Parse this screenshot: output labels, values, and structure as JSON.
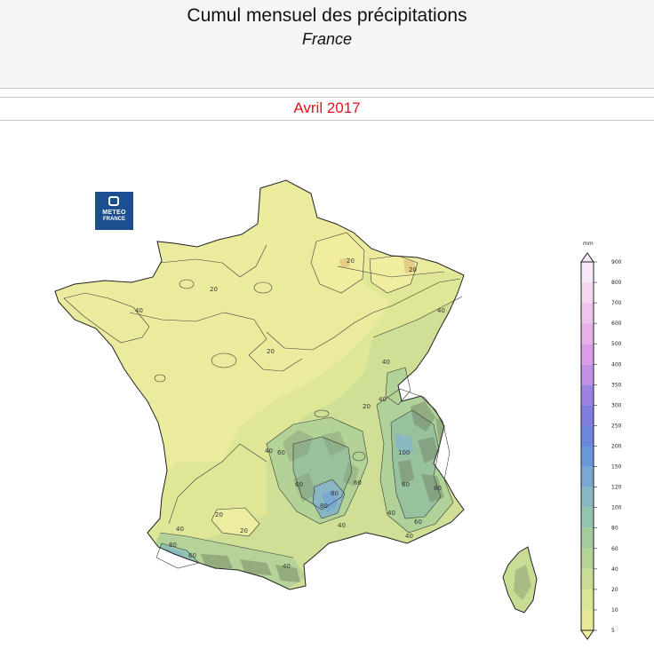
{
  "header": {
    "title": "Cumul mensuel des précipitations",
    "subtitle": "France"
  },
  "period": "Avril 2017",
  "logo": {
    "line1": "METEO",
    "line2": "FRANCE"
  },
  "legend": {
    "unit": "mm",
    "max_value": 900,
    "classes": [
      {
        "value": 5,
        "color": "#f0ee9a"
      },
      {
        "value": 10,
        "color": "#e6ea96"
      },
      {
        "value": 20,
        "color": "#d9e696"
      },
      {
        "value": 40,
        "color": "#c7dd94"
      },
      {
        "value": 60,
        "color": "#b4d497"
      },
      {
        "value": 80,
        "color": "#a2cc9c"
      },
      {
        "value": 100,
        "color": "#94c4ad"
      },
      {
        "value": 120,
        "color": "#8ab8c0"
      },
      {
        "value": 150,
        "color": "#7aa8d0"
      },
      {
        "value": 200,
        "color": "#6a96da"
      },
      {
        "value": 250,
        "color": "#6c86dc"
      },
      {
        "value": 300,
        "color": "#7f7ee0"
      },
      {
        "value": 350,
        "color": "#9b83e4"
      },
      {
        "value": 400,
        "color": "#c48fe8"
      },
      {
        "value": 500,
        "color": "#db9ce8"
      },
      {
        "value": 600,
        "color": "#e7b0e8"
      },
      {
        "value": 700,
        "color": "#efc4ec"
      },
      {
        "value": 800,
        "color": "#f4d6f0"
      },
      {
        "value": 900,
        "color": "#f9e8f6"
      }
    ]
  },
  "contour_labels": [
    "20",
    "40",
    "20",
    "40",
    "20",
    "40",
    "60",
    "40",
    "60",
    "80",
    "60",
    "100",
    "60",
    "80",
    "40",
    "40",
    "20",
    "40",
    "60",
    "80",
    "40",
    "60",
    "20",
    "20",
    "40",
    "20",
    "40",
    "80"
  ]
}
